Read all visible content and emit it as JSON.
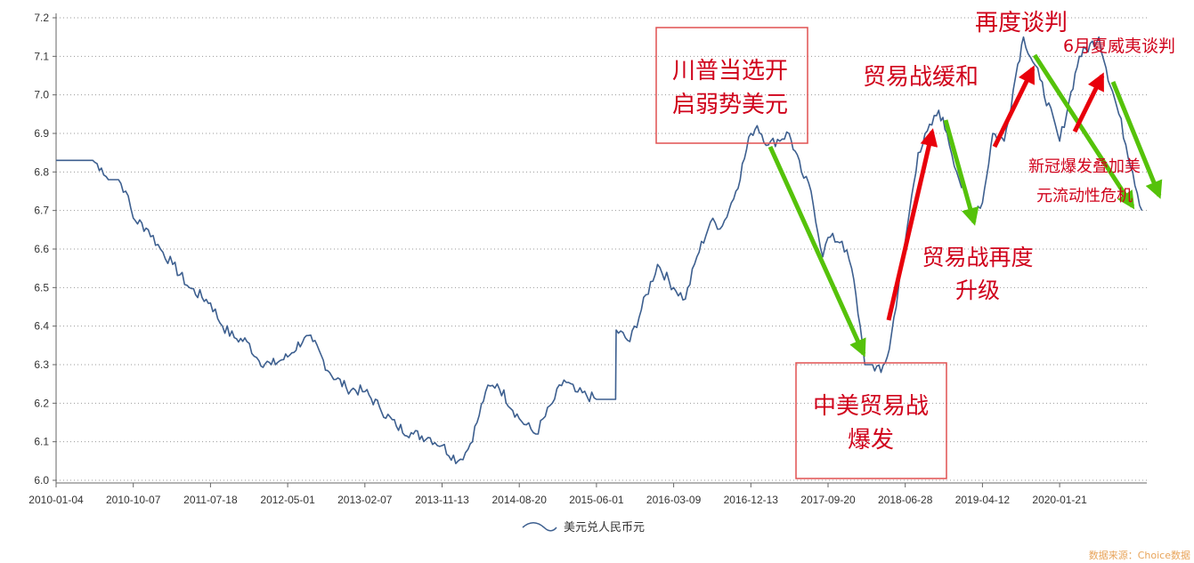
{
  "chart_data": {
    "type": "line",
    "title": "",
    "xlabel": "",
    "ylabel": "",
    "ylim": [
      6.0,
      7.2
    ],
    "yticks": [
      "7.2",
      "7.1",
      "7.0",
      "6.9",
      "6.8",
      "6.7",
      "6.6",
      "6.5",
      "6.4",
      "6.3",
      "6.2",
      "6.1",
      "6.0"
    ],
    "xticks": [
      "2010-01-04",
      "2010-10-07",
      "2011-07-18",
      "2012-05-01",
      "2013-02-07",
      "2013-11-13",
      "2014-08-20",
      "2015-06-01",
      "2016-03-09",
      "2016-12-13",
      "2017-09-20",
      "2018-06-28",
      "2019-04-12",
      "2020-01-21"
    ],
    "grid": "horizontal dotted",
    "legend_position": "bottom-center",
    "series": [
      {
        "name": "美元兑人民币元",
        "color": "#3d5f8f",
        "points": [
          [
            "2010-01-04",
            6.83
          ],
          [
            "2010-03-01",
            6.83
          ],
          [
            "2010-05-15",
            6.83
          ],
          [
            "2010-06-15",
            6.81
          ],
          [
            "2010-07-10",
            6.78
          ],
          [
            "2010-08-15",
            6.78
          ],
          [
            "2010-09-10",
            6.75
          ],
          [
            "2010-10-07",
            6.68
          ],
          [
            "2010-12-01",
            6.65
          ],
          [
            "2011-01-15",
            6.6
          ],
          [
            "2011-03-01",
            6.56
          ],
          [
            "2011-05-01",
            6.5
          ],
          [
            "2011-07-18",
            6.46
          ],
          [
            "2011-09-01",
            6.4
          ],
          [
            "2011-10-15",
            6.37
          ],
          [
            "2011-12-01",
            6.36
          ],
          [
            "2012-01-15",
            6.31
          ],
          [
            "2012-03-01",
            6.3
          ],
          [
            "2012-04-01",
            6.31
          ],
          [
            "2012-05-01",
            6.32
          ],
          [
            "2012-07-01",
            6.37
          ],
          [
            "2012-08-01",
            6.36
          ],
          [
            "2012-10-01",
            6.28
          ],
          [
            "2012-12-01",
            6.24
          ],
          [
            "2013-02-07",
            6.23
          ],
          [
            "2013-04-01",
            6.19
          ],
          [
            "2013-06-01",
            6.14
          ],
          [
            "2013-08-01",
            6.12
          ],
          [
            "2013-10-01",
            6.11
          ],
          [
            "2013-11-13",
            6.09
          ],
          [
            "2014-01-10",
            6.05
          ],
          [
            "2014-02-15",
            6.08
          ],
          [
            "2014-03-20",
            6.15
          ],
          [
            "2014-04-20",
            6.23
          ],
          [
            "2014-06-01",
            6.25
          ],
          [
            "2014-08-20",
            6.16
          ],
          [
            "2014-10-20",
            6.12
          ],
          [
            "2014-12-20",
            6.2
          ],
          [
            "2015-02-01",
            6.26
          ],
          [
            "2015-03-15",
            6.23
          ],
          [
            "2015-06-01",
            6.21
          ],
          [
            "2015-08-10",
            6.21
          ],
          [
            "2015-08-12",
            6.39
          ],
          [
            "2015-10-01",
            6.36
          ],
          [
            "2016-01-10",
            6.56
          ],
          [
            "2016-03-09",
            6.5
          ],
          [
            "2016-04-20",
            6.47
          ],
          [
            "2016-06-01",
            6.58
          ],
          [
            "2016-07-20",
            6.67
          ],
          [
            "2016-09-01",
            6.66
          ],
          [
            "2016-10-20",
            6.75
          ],
          [
            "2016-12-13",
            6.9
          ],
          [
            "2017-01-05",
            6.92
          ],
          [
            "2017-02-15",
            6.87
          ],
          [
            "2017-05-01",
            6.9
          ],
          [
            "2017-06-15",
            6.8
          ],
          [
            "2017-07-20",
            6.75
          ],
          [
            "2017-09-01",
            6.58
          ],
          [
            "2017-09-20",
            6.63
          ],
          [
            "2017-11-10",
            6.62
          ],
          [
            "2017-12-15",
            6.55
          ],
          [
            "2018-01-15",
            6.4
          ],
          [
            "2018-02-01",
            6.3
          ],
          [
            "2018-03-01",
            6.3
          ],
          [
            "2018-04-01",
            6.28
          ],
          [
            "2018-05-01",
            6.34
          ],
          [
            "2018-06-28",
            6.62
          ],
          [
            "2018-08-15",
            6.85
          ],
          [
            "2018-10-31",
            6.96
          ],
          [
            "2018-12-01",
            6.9
          ],
          [
            "2019-01-15",
            6.78
          ],
          [
            "2019-03-01",
            6.7
          ],
          [
            "2019-04-12",
            6.72
          ],
          [
            "2019-05-20",
            6.9
          ],
          [
            "2019-07-01",
            6.88
          ],
          [
            "2019-08-20",
            7.08
          ],
          [
            "2019-09-10",
            7.15
          ],
          [
            "2019-11-10",
            7.04
          ],
          [
            "2020-01-21",
            6.88
          ],
          [
            "2020-02-20",
            6.98
          ],
          [
            "2020-03-25",
            7.1
          ],
          [
            "2020-05-28",
            7.15
          ],
          [
            "2020-06-20",
            7.07
          ],
          [
            "2020-08-01",
            6.95
          ],
          [
            "2020-09-15",
            6.8
          ],
          [
            "2020-10-15",
            6.7
          ]
        ]
      }
    ],
    "annotations": {
      "trump": [
        "川普当选开",
        "启弱势美元"
      ],
      "tradewar_start": [
        "中美贸易战",
        "爆发"
      ],
      "easing": "贸易战缓和",
      "escalation": [
        "贸易战再度",
        "升级"
      ],
      "renegotiate": "再度谈判",
      "hawaii": "6月夏威夷谈判",
      "covid": [
        "新冠爆发叠加美",
        "元流动性危机"
      ]
    },
    "arrow_colors": {
      "up": "#e8000b",
      "down": "#55c20a"
    },
    "box_color": "#e05050"
  },
  "legend": {
    "label": "美元兑人民币元"
  },
  "source": "数据来源：Choice数据"
}
